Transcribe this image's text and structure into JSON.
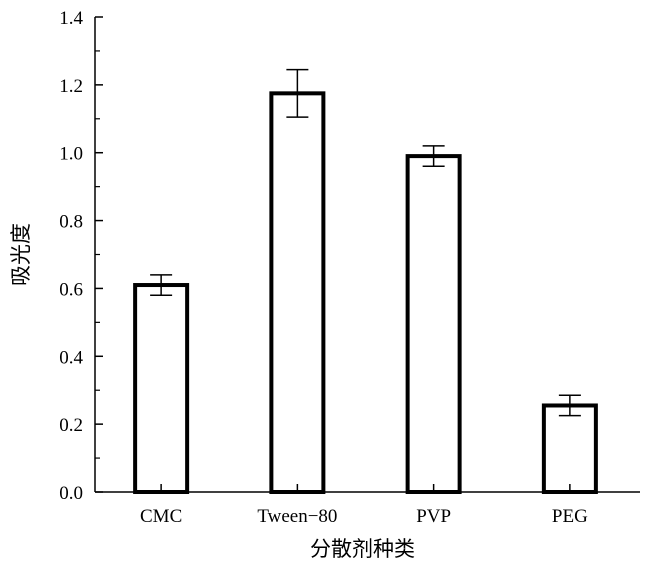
{
  "chart_data": {
    "type": "bar",
    "categories": [
      "CMC",
      "Tween−80",
      "PVP",
      "PEG"
    ],
    "values": [
      0.61,
      1.175,
      0.99,
      0.255
    ],
    "errors": [
      0.03,
      0.07,
      0.03,
      0.03
    ],
    "xlabel": "分散剂种类",
    "ylabel": "吸光度",
    "ylim": [
      0,
      1.4
    ],
    "yticks": [
      "0.0",
      "0.2",
      "0.4",
      "0.6",
      "0.8",
      "1.0",
      "1.2",
      "1.4"
    ],
    "grid": false,
    "bar_fill": "#ffffff",
    "bar_stroke": "#000000"
  }
}
